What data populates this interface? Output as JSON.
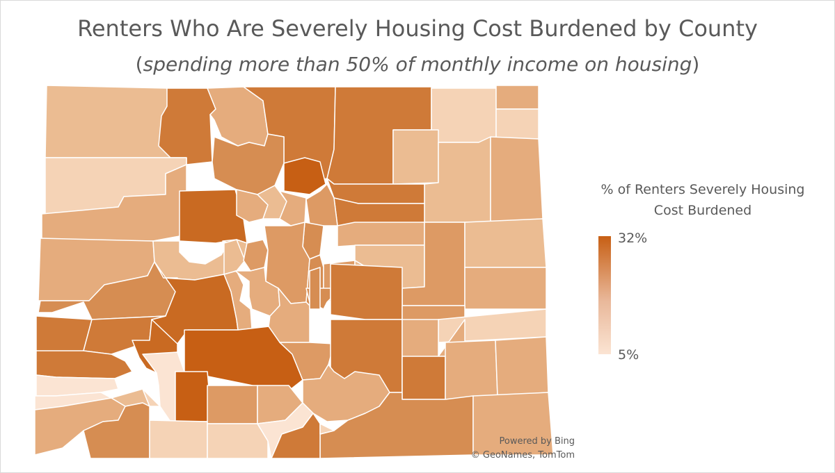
{
  "title": "Renters Who Are Severely Housing Cost Burdened by County",
  "subtitle": {
    "open": "(",
    "italic": "spending more than 50% of monthly income on housing",
    "close": ")"
  },
  "legend": {
    "title": "% of Renters Severely Housing Cost Burdened",
    "max_label": "32%",
    "min_label": "5%",
    "max_value": 32,
    "min_value": 5,
    "max_color": "#c75f14",
    "min_color": "#fbe4d3"
  },
  "attribution": {
    "line1": "Powered by Bing",
    "line2": "© GeoNames, TomTom"
  },
  "colors": {
    "c1": "#fbe4d3",
    "c2": "#f5d3b6",
    "c3": "#ebbc92",
    "c4": "#e5ac7d",
    "c5": "#dd9a64",
    "c6": "#d68d52",
    "c7": "#cf7a38",
    "c8": "#c96a22",
    "c9": "#c75f14",
    "border": "#ffffff"
  }
}
